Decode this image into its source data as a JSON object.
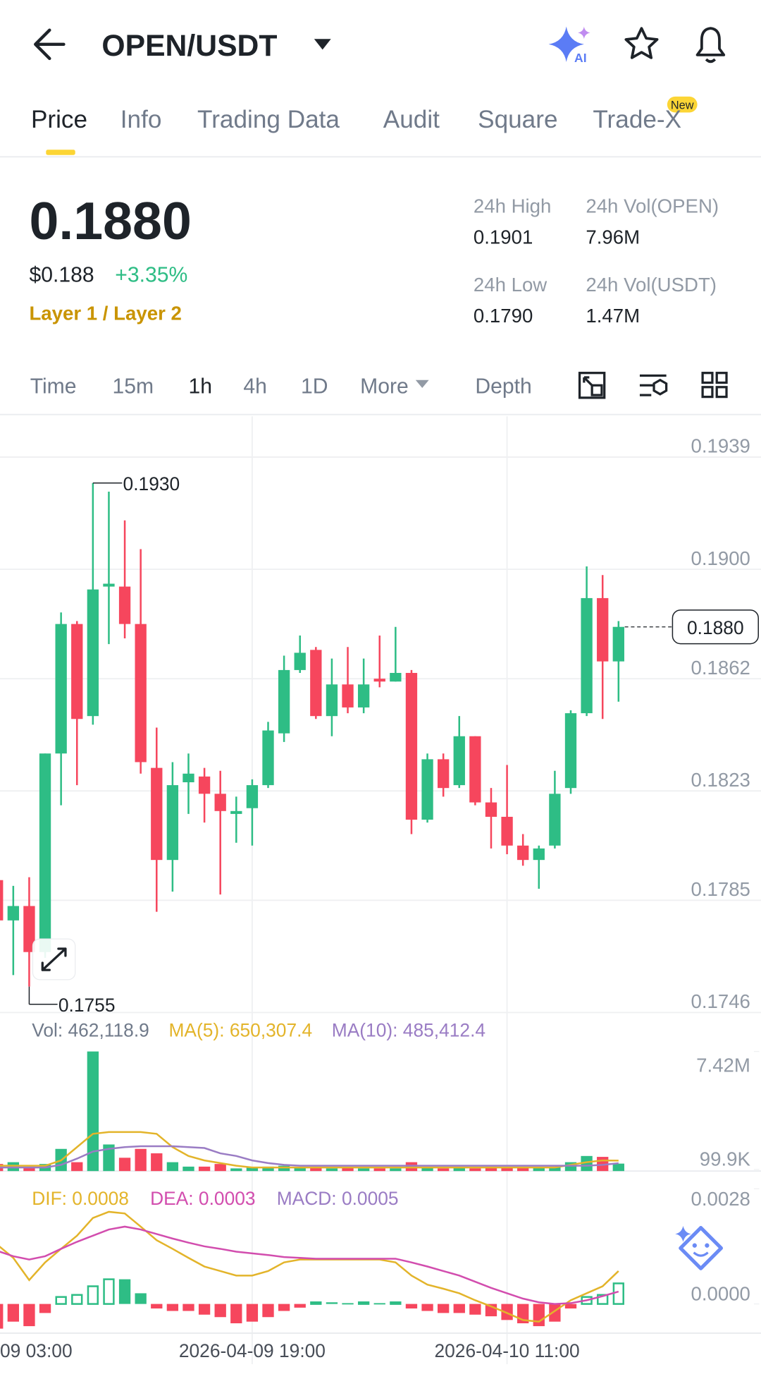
{
  "header": {
    "title": "OPEN/USDT",
    "ai_label": "AI"
  },
  "tabs": [
    "Price",
    "Info",
    "Trading Data",
    "Audit",
    "Square",
    "Trade-X"
  ],
  "tab_badge": "New",
  "ticker": {
    "price": "0.1880",
    "usd": "$0.188",
    "change": "+3.35%",
    "tag": "Layer 1 / Layer 2",
    "stats": [
      {
        "label": "24h High",
        "value": "0.1901"
      },
      {
        "label": "24h Vol(OPEN)",
        "value": "7.96M"
      },
      {
        "label": "24h Low",
        "value": "0.1790"
      },
      {
        "label": "24h Vol(USDT)",
        "value": "1.47M"
      }
    ]
  },
  "intervals": [
    "Time",
    "15m",
    "1h",
    "4h",
    "1D",
    "More",
    "Depth"
  ],
  "chart_data": [
    {
      "type": "candlestick",
      "up_color": "#2ebd85",
      "down_color": "#f6465d",
      "categories": [
        "09 03:00",
        null,
        null,
        null,
        null,
        null,
        null,
        null,
        null,
        null,
        null,
        null,
        null,
        null,
        null,
        null,
        "2026-04-09 19:00",
        null,
        null,
        null,
        null,
        null,
        null,
        null,
        null,
        null,
        null,
        null,
        null,
        null,
        null,
        null,
        "2026-04-10 11:00",
        null,
        null,
        null,
        null,
        null,
        null,
        null
      ],
      "open": [
        0.1792,
        0.1778,
        0.1783,
        0.1767,
        0.1836,
        0.1881,
        0.1849,
        0.1894,
        0.1894,
        0.1881,
        0.1831,
        0.1799,
        0.1826,
        0.1828,
        0.1822,
        0.1815,
        0.1817,
        0.1825,
        0.1843,
        0.1865,
        0.1872,
        0.1849,
        0.186,
        0.1852,
        0.1862,
        0.1861,
        0.1864,
        0.1813,
        0.1834,
        0.1825,
        0.1842,
        0.1819,
        0.1814,
        0.1804,
        0.1799,
        0.1804,
        0.1824,
        0.185,
        0.189,
        0.1868
      ],
      "high": [
        0.1795,
        0.179,
        0.1793,
        0.1836,
        0.1885,
        0.1882,
        0.193,
        0.1927,
        0.1917,
        0.1907,
        0.1845,
        0.1833,
        0.1836,
        0.1831,
        0.183,
        0.1821,
        0.1827,
        0.1847,
        0.187,
        0.1877,
        0.1873,
        0.1869,
        0.1873,
        0.1869,
        0.1877,
        0.188,
        0.1865,
        0.1836,
        0.1836,
        0.1849,
        0.1842,
        0.1824,
        0.1832,
        0.1808,
        0.1804,
        0.183,
        0.1851,
        0.1901,
        0.1898,
        0.1882
      ],
      "low": [
        0.1775,
        0.1759,
        0.1755,
        0.1765,
        0.1818,
        0.1825,
        0.1846,
        0.1874,
        0.1876,
        0.1829,
        0.1781,
        0.1788,
        0.1815,
        0.1812,
        0.1787,
        0.1805,
        0.1804,
        0.1824,
        0.184,
        0.1864,
        0.1848,
        0.1842,
        0.185,
        0.185,
        0.1859,
        0.1861,
        0.1808,
        0.1812,
        0.1821,
        0.1824,
        0.1818,
        0.1803,
        0.1801,
        0.1797,
        0.1789,
        0.1803,
        0.1822,
        0.1849,
        0.1848,
        0.1854
      ],
      "close": [
        0.1778,
        0.1783,
        0.1767,
        0.1836,
        0.1881,
        0.1848,
        0.1893,
        0.1895,
        0.1881,
        0.1833,
        0.1799,
        0.1825,
        0.1829,
        0.1822,
        0.1816,
        0.1816,
        0.1825,
        0.1844,
        0.1865,
        0.1871,
        0.1849,
        0.186,
        0.1852,
        0.186,
        0.1861,
        0.1864,
        0.1813,
        0.1834,
        0.1824,
        0.1842,
        0.1819,
        0.1814,
        0.1804,
        0.1799,
        0.1803,
        0.1822,
        0.185,
        0.189,
        0.1868,
        0.188
      ],
      "ylim": [
        0.1746,
        0.1939
      ],
      "yticks": [
        0.1939,
        {
          "value": 0.19,
          "label": "0.1900"
        },
        0.1862,
        0.1823,
        0.1785,
        0.1746
      ],
      "grid": true,
      "high_label": {
        "value": 0.193,
        "label": "0.1930"
      },
      "low_label": {
        "value": 0.1755,
        "label": "0.1755"
      },
      "current_price": {
        "value": 0.188,
        "label": "0.1880"
      }
    },
    {
      "type": "bar",
      "legend_label": "Vol: 462,118.9",
      "values": [
        440000,
        550000,
        275000,
        440000,
        1375000,
        550000,
        7420000,
        1650000,
        825000,
        1375000,
        1100000,
        550000,
        275000,
        275000,
        440000,
        165000,
        220000,
        275000,
        330000,
        220000,
        275000,
        165000,
        220000,
        165000,
        165000,
        165000,
        550000,
        220000,
        165000,
        220000,
        165000,
        275000,
        220000,
        220000,
        220000,
        275000,
        550000,
        935000,
        880000,
        462118.9
      ],
      "series": [
        {
          "name": "MA(5): 650,307.4",
          "color": "#e3b42a",
          "values": [
            330000,
            330000,
            330000,
            330000,
            660000,
            1485000,
            2310000,
            2420000,
            2420000,
            2420000,
            2310000,
            1485000,
            935000,
            660000,
            495000,
            330000,
            220000,
            220000,
            220000,
            220000,
            220000,
            220000,
            220000,
            220000,
            220000,
            220000,
            220000,
            220000,
            220000,
            220000,
            220000,
            220000,
            220000,
            220000,
            220000,
            220000,
            385000,
            550000,
            660000,
            650307.4
          ]
        },
        {
          "name": "MA(10): 485,412.4",
          "color": "#9a7cc4",
          "values": [
            220000,
            220000,
            220000,
            220000,
            385000,
            770000,
            1210000,
            1375000,
            1485000,
            1540000,
            1540000,
            1540000,
            1485000,
            1430000,
            1100000,
            935000,
            660000,
            495000,
            385000,
            330000,
            330000,
            330000,
            330000,
            330000,
            330000,
            330000,
            330000,
            330000,
            330000,
            330000,
            330000,
            330000,
            330000,
            330000,
            330000,
            330000,
            330000,
            330000,
            385000,
            485412.4
          ]
        }
      ],
      "ylim": [
        0,
        7420000
      ],
      "yticks": [
        {
          "value": 7420000,
          "label": "7.42M"
        },
        {
          "value": 99900,
          "label": "99.9K"
        }
      ]
    },
    {
      "type": "macd",
      "series": [
        {
          "name": "DIF: 0.0008",
          "color": "#e3b42a",
          "values": [
            0.00144,
            0.00112,
            0.00058,
            0.00101,
            0.00134,
            0.00166,
            0.00209,
            0.00224,
            0.0022,
            0.00188,
            0.00155,
            0.00134,
            0.00112,
            0.00091,
            0.0008,
            0.00069,
            0.00069,
            0.0008,
            0.00101,
            0.00108,
            0.00108,
            0.00108,
            0.00108,
            0.00108,
            0.00108,
            0.00101,
            0.00069,
            0.00047,
            0.00037,
            0.00026,
            9e-05,
            -6e-05,
            -0.00022,
            -0.00039,
            -0.00043,
            -0.00017,
            9e-05,
            0.00026,
            0.00043,
            0.0008
          ]
        },
        {
          "name": "DEA: 0.0003",
          "color": "#d24dae",
          "values": [
            0.00129,
            0.00116,
            0.00108,
            0.00116,
            0.00134,
            0.00151,
            0.00166,
            0.00181,
            0.00188,
            0.00181,
            0.0017,
            0.00159,
            0.00149,
            0.0014,
            0.00134,
            0.00127,
            0.00123,
            0.00119,
            0.00114,
            0.00112,
            0.0011,
            0.0011,
            0.0011,
            0.0011,
            0.0011,
            0.0011,
            0.00101,
            0.00091,
            0.0008,
            0.00069,
            0.00054,
            0.00039,
            0.00026,
            0.00013,
            4e-05,
            0,
            2e-05,
            9e-05,
            0.00019,
            0.0003
          ]
        }
      ],
      "histogram": {
        "name": "MACD: 0.0005",
        "color": "#9a7cc4",
        "values": [
          -0.0006,
          -0.00043,
          -0.00054,
          -0.00022,
          0.00017,
          0.00022,
          0.00043,
          0.0006,
          0.0006,
          0.00026,
          -0.00011,
          -0.00017,
          -0.00017,
          -0.00026,
          -0.00032,
          -0.00047,
          -0.00043,
          -0.00032,
          -0.00017,
          -9e-05,
          4e-05,
          4e-05,
          2e-05,
          4e-05,
          2e-05,
          4e-05,
          -0.00011,
          -0.00017,
          -0.00022,
          -0.00022,
          -0.00026,
          -0.0003,
          -0.00039,
          -0.00047,
          -0.00054,
          -0.00043,
          -0.00011,
          0.00017,
          0.00022,
          0.0005
        ]
      },
      "ylim": [
        -0.00071,
        0.0028
      ],
      "yticks": [
        0.0028,
        {
          "value": 0,
          "label": "0.0000"
        }
      ]
    }
  ]
}
